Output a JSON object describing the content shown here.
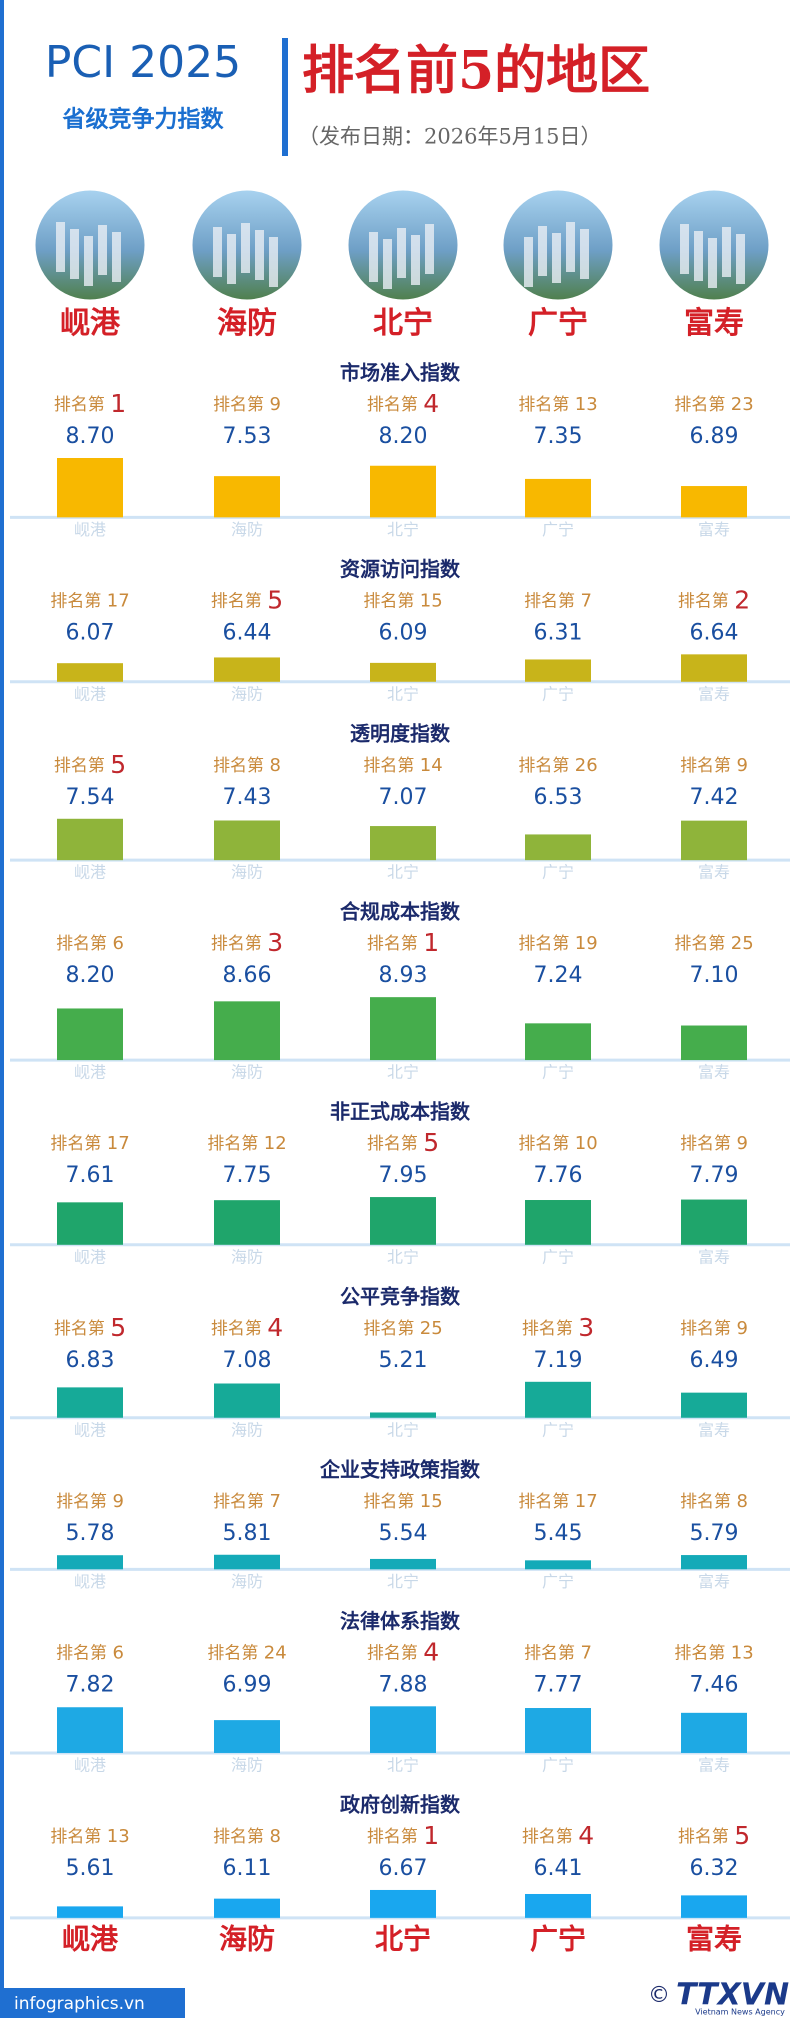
{
  "header": {
    "title_left": "PCI 2025",
    "subtitle_left": "省级竞争力指数",
    "title_right": "排名前5的地区",
    "date": "（发布日期：2026年5月15日）"
  },
  "cities": [
    "岘港",
    "海防",
    "北宁",
    "广宁",
    "富寿"
  ],
  "rank_prefix": "排名第",
  "ylim": [
    4.87,
    9
  ],
  "indices": [
    {
      "title": "市场准入指数",
      "color": "#f8b800",
      "ranks": [
        1,
        9,
        4,
        13,
        23
      ],
      "values": [
        8.7,
        7.53,
        8.2,
        7.35,
        6.89
      ],
      "value_labels": [
        "8.70",
        "7.53",
        "8.20",
        "7.35",
        "6.89"
      ]
    },
    {
      "title": "资源访问指数",
      "color": "#c8b41a",
      "ranks": [
        17,
        5,
        15,
        7,
        2
      ],
      "values": [
        6.07,
        6.44,
        6.09,
        6.31,
        6.64
      ],
      "value_labels": [
        "6.07",
        "6.44",
        "6.09",
        "6.31",
        "6.64"
      ]
    },
    {
      "title": "透明度指数",
      "color": "#8fb43a",
      "ranks": [
        5,
        8,
        14,
        26,
        9
      ],
      "values": [
        7.54,
        7.43,
        7.07,
        6.53,
        7.42
      ],
      "value_labels": [
        "7.54",
        "7.43",
        "7.07",
        "6.53",
        "7.42"
      ]
    },
    {
      "title": "合规成本指数",
      "color": "#45ad4c",
      "ranks": [
        6,
        3,
        1,
        19,
        25
      ],
      "values": [
        8.2,
        8.66,
        8.93,
        7.24,
        7.1
      ],
      "value_labels": [
        "8.20",
        "8.66",
        "8.93",
        "7.24",
        "7.10"
      ]
    },
    {
      "title": "非正式成本指数",
      "color": "#1fa56b",
      "ranks": [
        17,
        12,
        5,
        10,
        9
      ],
      "values": [
        7.61,
        7.75,
        7.95,
        7.76,
        7.79
      ],
      "value_labels": [
        "7.61",
        "7.75",
        "7.95",
        "7.76",
        "7.79"
      ]
    },
    {
      "title": "公平竞争指数",
      "color": "#16aa98",
      "ranks": [
        5,
        4,
        25,
        3,
        9
      ],
      "values": [
        6.83,
        7.08,
        5.21,
        7.19,
        6.49
      ],
      "value_labels": [
        "6.83",
        "7.08",
        "5.21",
        "7.19",
        "6.49"
      ]
    },
    {
      "title": "企业支持政策指数",
      "color": "#14aab8",
      "ranks": [
        9,
        7,
        15,
        17,
        8
      ],
      "values": [
        5.78,
        5.81,
        5.54,
        5.45,
        5.79
      ],
      "value_labels": [
        "5.78",
        "5.81",
        "5.54",
        "5.45",
        "5.79"
      ]
    },
    {
      "title": "法律体系指数",
      "color": "#1ea9e4",
      "ranks": [
        6,
        24,
        4,
        7,
        13
      ],
      "values": [
        7.82,
        6.99,
        7.88,
        7.77,
        7.46
      ],
      "value_labels": [
        "7.82",
        "6.99",
        "7.88",
        "7.77",
        "7.46"
      ]
    },
    {
      "title": "政府创新指数",
      "color": "#19a7ef",
      "ranks": [
        13,
        8,
        1,
        4,
        5
      ],
      "values": [
        5.61,
        6.11,
        6.67,
        6.41,
        6.32
      ],
      "value_labels": [
        "5.61",
        "6.11",
        "6.67",
        "6.41",
        "6.32"
      ]
    }
  ],
  "footer": {
    "site": "infographics.vn",
    "copyright": "©",
    "logo": "TTXVN",
    "agency": "Vietnam News Agency"
  }
}
